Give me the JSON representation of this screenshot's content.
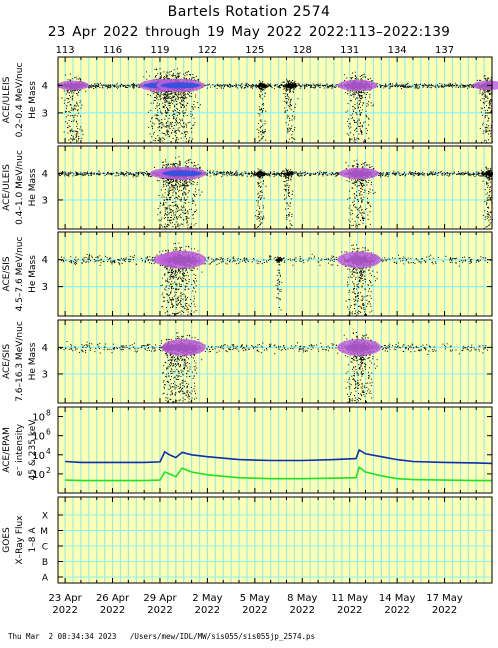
{
  "header": {
    "title": "Bartels Rotation 2574",
    "subtitle": "23 Apr 2022 through 19 May 2022    2022:113–2022:139"
  },
  "footer": {
    "text": "Thu Mar  2 08:34:34 2023   /Users/mew/IDL/MW/sis055/sis055jp_2574.ps"
  },
  "colors": {
    "background_stripe_yellow": "#ffffb4",
    "stripe_cyan": "#8ef0f0",
    "mass_core": "#3050e0",
    "mass_mid": "#c060e0",
    "epam_high": "#0a2fa8",
    "epam_low": "#22e022"
  },
  "chart_data": [
    {
      "type": "scatter",
      "panel": "ace-uleis-0.2-0.4",
      "ylabel": "ACE/ULEIS",
      "ylabel2": "0.2–0.4 MeV/nuc",
      "ylabel3": "He Mass",
      "yticks": [
        "4",
        "3"
      ],
      "doy_range": [
        113,
        140
      ],
      "bursts": [
        {
          "doy": 113.5,
          "strength": 0.6
        },
        {
          "doy": 119.2,
          "strength": 1.0
        },
        {
          "doy": 120.3,
          "strength": 1.0
        },
        {
          "doy": 125.4,
          "strength": 0.3
        },
        {
          "doy": 127.2,
          "strength": 0.4
        },
        {
          "doy": 131.5,
          "strength": 0.8
        },
        {
          "doy": 139.8,
          "strength": 0.6
        }
      ]
    },
    {
      "type": "scatter",
      "panel": "ace-uleis-0.4-1.0",
      "ylabel": "ACE/ULEIS",
      "ylabel2": "0.4–1.0 MeV/nuc",
      "ylabel3": "He Mass",
      "yticks": [
        "4",
        "3"
      ],
      "doy_range": [
        113,
        140
      ],
      "bursts": [
        {
          "doy": 119.5,
          "strength": 0.7
        },
        {
          "doy": 120.4,
          "strength": 1.0
        },
        {
          "doy": 125.3,
          "strength": 0.3
        },
        {
          "doy": 127.1,
          "strength": 0.3
        },
        {
          "doy": 131.6,
          "strength": 0.8
        },
        {
          "doy": 139.8,
          "strength": 0.4
        }
      ]
    },
    {
      "type": "scatter",
      "panel": "ace-sis-4.5-7.6",
      "ylabel": "ACE/SIS",
      "ylabel2": "4.5–7.6 MeV/nuc",
      "ylabel3": "He Mass",
      "yticks": [
        "4",
        "3"
      ],
      "doy_range": [
        113,
        140
      ],
      "bursts": [
        {
          "doy": 119.6,
          "strength": 0.6
        },
        {
          "doy": 120.4,
          "strength": 1.0
        },
        {
          "doy": 126.5,
          "strength": 0.2
        },
        {
          "doy": 131.6,
          "strength": 0.9
        }
      ]
    },
    {
      "type": "scatter",
      "panel": "ace-sis-7.6-16.3",
      "ylabel": "ACE/SIS",
      "ylabel2": "7.6–16.3 MeV/nuc",
      "ylabel3": "He Mass",
      "yticks": [
        "4",
        "3"
      ],
      "doy_range": [
        113,
        140
      ],
      "bursts": [
        {
          "doy": 119.6,
          "strength": 0.5
        },
        {
          "doy": 120.5,
          "strength": 0.9
        },
        {
          "doy": 131.6,
          "strength": 0.9
        }
      ]
    },
    {
      "type": "line",
      "panel": "ace-epam",
      "ylabel": "ACE/EPAM",
      "ylabel2": "e⁻ intensity",
      "ylabel3": "45 & 235 keV",
      "yscale": "log",
      "ylim_log10": [
        0,
        9
      ],
      "yticks": [
        {
          "base": "10",
          "exp": "8",
          "log": 8
        },
        {
          "base": "10",
          "exp": "6",
          "log": 6
        },
        {
          "base": "10",
          "exp": "4",
          "log": 4
        },
        {
          "base": "10",
          "exp": "2",
          "log": 2
        }
      ],
      "series": [
        {
          "x": [
            113,
            114,
            116,
            118,
            119.0,
            119.3,
            119.6,
            120.0,
            120.4,
            121,
            122,
            124,
            126,
            128,
            130,
            131.4,
            131.6,
            132,
            133,
            134,
            135,
            137,
            139,
            140
          ],
          "log10_values": [
            3.3,
            3.2,
            3.2,
            3.2,
            3.25,
            4.3,
            4.0,
            3.7,
            4.25,
            4.0,
            3.8,
            3.5,
            3.4,
            3.4,
            3.5,
            3.6,
            4.5,
            4.1,
            3.8,
            3.5,
            3.3,
            3.2,
            3.15,
            3.1
          ]
        },
        {
          "x": [
            113,
            114,
            116,
            118,
            119.0,
            119.3,
            119.6,
            120.0,
            120.4,
            121,
            122,
            124,
            126,
            128,
            130,
            131.4,
            131.6,
            132,
            133,
            134,
            135,
            137,
            139,
            140
          ],
          "log10_values": [
            1.35,
            1.3,
            1.3,
            1.3,
            1.35,
            2.2,
            2.0,
            1.7,
            2.6,
            2.2,
            1.9,
            1.6,
            1.5,
            1.5,
            1.55,
            1.6,
            2.7,
            2.2,
            1.8,
            1.5,
            1.4,
            1.35,
            1.3,
            1.3
          ]
        }
      ]
    },
    {
      "type": "line",
      "panel": "goes",
      "ylabel": "GOES",
      "ylabel2": "X–Ray Flux",
      "ylabel3": "1–8 A",
      "yticks": [
        "X",
        "M",
        "C",
        "B",
        "A"
      ],
      "series": []
    }
  ],
  "axes": {
    "top_doy_ticks": [
      {
        "doy": 113,
        "label": "113"
      },
      {
        "doy": 116,
        "label": "116"
      },
      {
        "doy": 119,
        "label": "119"
      },
      {
        "doy": 122,
        "label": "122"
      },
      {
        "doy": 125,
        "label": "125"
      },
      {
        "doy": 128,
        "label": "128"
      },
      {
        "doy": 131,
        "label": "131"
      },
      {
        "doy": 134,
        "label": "134"
      },
      {
        "doy": 137,
        "label": "137"
      }
    ],
    "bottom_date_ticks": [
      {
        "doy": 113,
        "label": "23 Apr",
        "year": "2022"
      },
      {
        "doy": 116,
        "label": "26 Apr",
        "year": "2022"
      },
      {
        "doy": 119,
        "label": "29 Apr",
        "year": "2022"
      },
      {
        "doy": 122,
        "label": "2 May",
        "year": "2022"
      },
      {
        "doy": 125,
        "label": "5 May",
        "year": "2022"
      },
      {
        "doy": 128,
        "label": "8 May",
        "year": "2022"
      },
      {
        "doy": 131,
        "label": "11 May",
        "year": "2022"
      },
      {
        "doy": 134,
        "label": "14 May",
        "year": "2022"
      },
      {
        "doy": 137,
        "label": "17 May",
        "year": "2022"
      }
    ]
  }
}
